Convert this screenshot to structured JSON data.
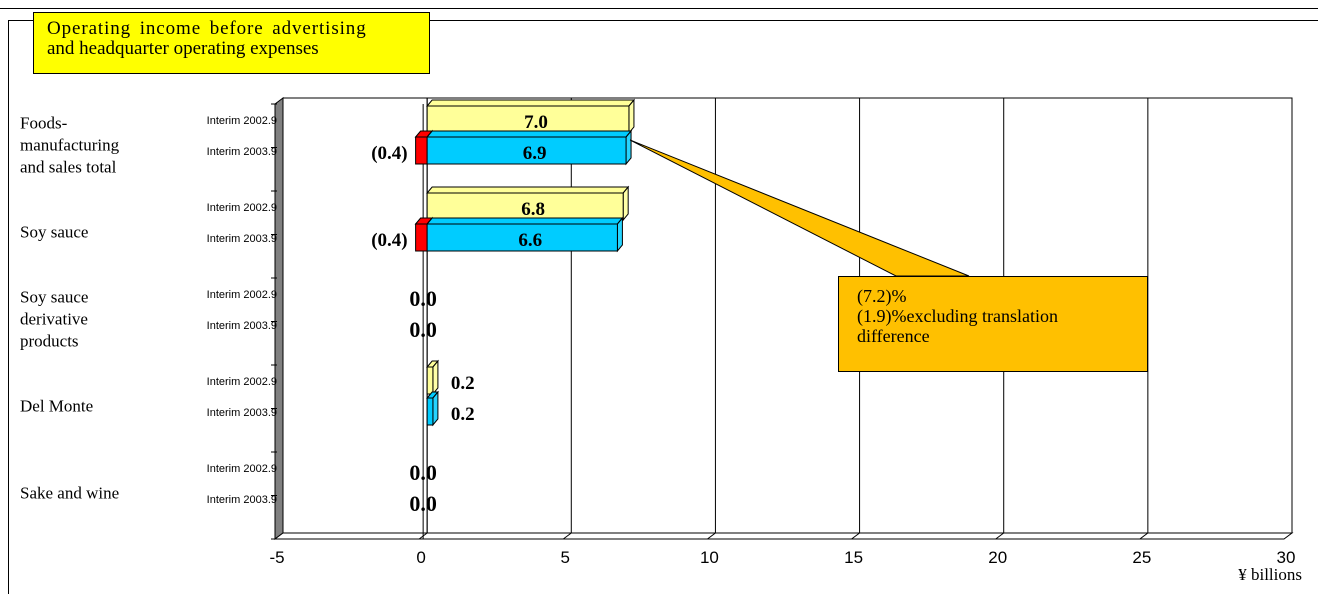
{
  "title_lines": [
    "Operating income before advertising",
    "and headquarter operating expenses"
  ],
  "callout_lines": [
    "(7.2)%",
    "(1.9)%excluding translation",
    "difference"
  ],
  "unit_label": "¥ billions",
  "colors": {
    "series_2002": "#ffff99",
    "series_2003": "#00ccff",
    "negative_part": "#ff0000",
    "title_box": "#ffff00",
    "callout": "#ffc000"
  },
  "chart_data": {
    "type": "bar",
    "orientation": "horizontal",
    "title": "Operating income before advertising and headquarter operating expenses",
    "xlabel": "¥ billions",
    "ylabel": "",
    "xlim": [
      -5,
      30
    ],
    "x_ticks": [
      "-5",
      "0",
      "5",
      "10",
      "15",
      "20",
      "25",
      "30"
    ],
    "grid": true,
    "period_labels": [
      "Interim 2002.9",
      "Interim 2003.9"
    ],
    "categories": [
      {
        "label_lines": [
          "Foods-",
          "manufacturing",
          "and sales total"
        ],
        "bars": [
          {
            "period": "Interim 2002.9",
            "value": 7.0,
            "negative": 0,
            "label": "7.0"
          },
          {
            "period": "Interim 2003.9",
            "value": 6.9,
            "negative": -0.4,
            "label": "6.9",
            "negative_label": "(0.4)"
          }
        ]
      },
      {
        "label_lines": [
          "Soy sauce"
        ],
        "bars": [
          {
            "period": "Interim 2002.9",
            "value": 6.8,
            "negative": 0,
            "label": "6.8"
          },
          {
            "period": "Interim 2003.9",
            "value": 6.6,
            "negative": -0.4,
            "label": "6.6",
            "negative_label": "(0.4)"
          }
        ]
      },
      {
        "label_lines": [
          "Soy sauce",
          "derivative",
          "products"
        ],
        "bars": [
          {
            "period": "Interim 2002.9",
            "value": 0.0,
            "negative": 0,
            "label": "0.0"
          },
          {
            "period": "Interim 2003.9",
            "value": 0.0,
            "negative": 0,
            "label": "0.0"
          }
        ]
      },
      {
        "label_lines": [
          "Del Monte"
        ],
        "bars": [
          {
            "period": "Interim 2002.9",
            "value": 0.2,
            "negative": 0,
            "label": "0.2"
          },
          {
            "period": "Interim 2003.9",
            "value": 0.2,
            "negative": 0,
            "label": "0.2"
          }
        ]
      },
      {
        "label_lines": [
          "Sake and wine"
        ],
        "bars": [
          {
            "period": "Interim 2002.9",
            "value": 0.0,
            "negative": 0,
            "label": "0.0"
          },
          {
            "period": "Interim 2003.9",
            "value": 0.0,
            "negative": 0,
            "label": "0.0"
          }
        ]
      }
    ]
  }
}
